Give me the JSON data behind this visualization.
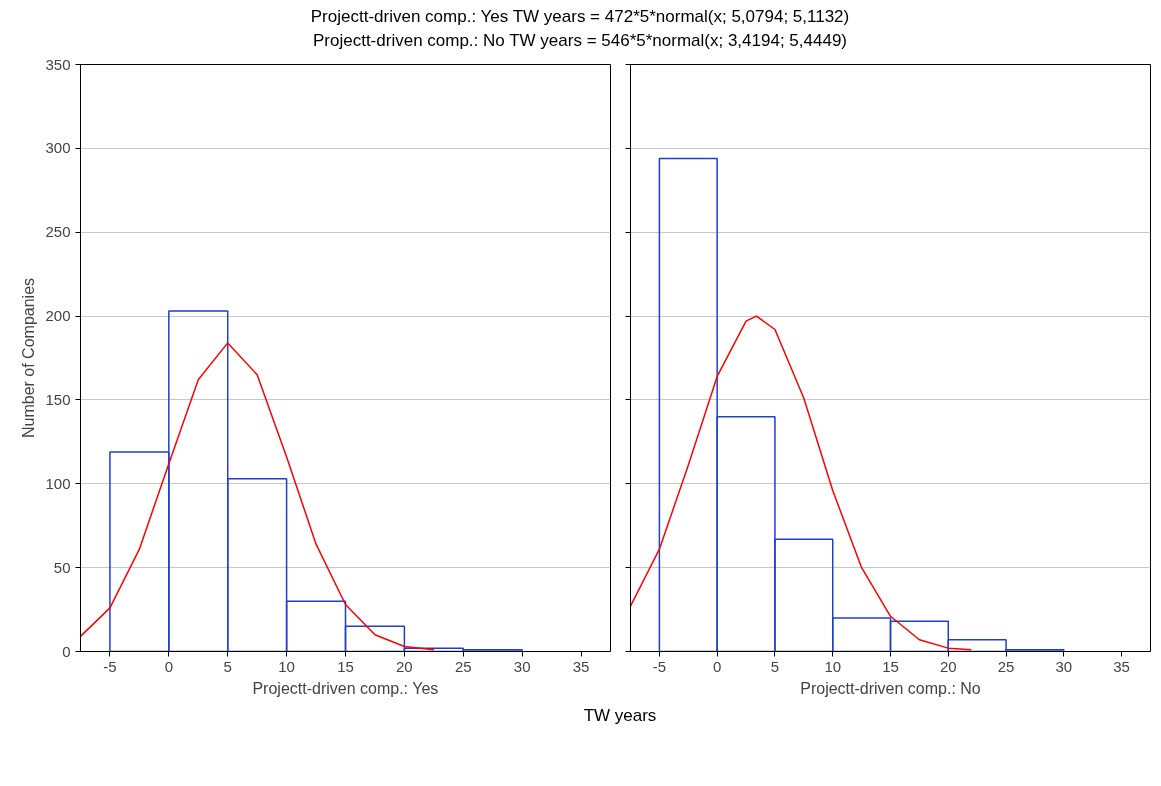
{
  "chart_data": [
    {
      "type": "histogram",
      "title": "Projectt-driven comp.: Yes TW years = 472*5*normal(x; 5,0794; 5,1132)\nProjectt-driven comp.: No TW years = 546*5*normal(x; 3,4194; 5,4449)",
      "ylabel": "Number of Companies",
      "xlabel": "Projectt-driven comp.: Yes",
      "annotations": [
        "TW years"
      ],
      "bins": [
        -5,
        0,
        5,
        10,
        15,
        20,
        25,
        30
      ],
      "series": [
        {
          "color": "#1f3fcf",
          "values": [
            119,
            203,
            103,
            30,
            15,
            2,
            1
          ]
        },
        {
          "type": "line",
          "color": "#ff0000",
          "x": [
            -7.5,
            -5,
            -2.5,
            0,
            2.5,
            5,
            7.5,
            10,
            12.5,
            15,
            17.5,
            20,
            22.5
          ],
          "values": [
            9,
            26,
            61,
            112,
            162,
            184,
            165,
            116,
            64,
            28,
            10,
            3,
            1
          ]
        }
      ],
      "xlim": [
        -7.5,
        37.5
      ],
      "ylim": [
        0,
        350
      ],
      "xticks": [
        -5,
        0,
        5,
        10,
        15,
        20,
        25,
        30,
        35
      ],
      "yticks": [
        0,
        50,
        100,
        150,
        200,
        250,
        300,
        350
      ],
      "grid": "y"
    },
    {
      "type": "histogram",
      "xlabel": "Projectt-driven comp.: No",
      "bins": [
        -5,
        0,
        5,
        10,
        15,
        20,
        25,
        30
      ],
      "series": [
        {
          "color": "#1f3fcf",
          "values": [
            294,
            140,
            67,
            20,
            18,
            7,
            1
          ]
        },
        {
          "type": "line",
          "color": "#ff0000",
          "x": [
            -7.5,
            -5,
            -2.5,
            0,
            2.5,
            3.4,
            5,
            7.5,
            10,
            12.5,
            15,
            17.5,
            20,
            22
          ],
          "values": [
            27,
            61,
            111,
            164,
            197,
            200,
            192,
            151,
            96,
            50,
            21,
            7,
            2,
            1
          ]
        }
      ],
      "xlim": [
        -7.5,
        37.5
      ],
      "ylim": [
        0,
        350
      ],
      "xticks": [
        -5,
        0,
        5,
        10,
        15,
        20,
        25,
        30,
        35
      ],
      "yticks": [
        0,
        50,
        100,
        150,
        200,
        250,
        300,
        350
      ],
      "grid": "y",
      "tick_labels": "x"
    }
  ]
}
